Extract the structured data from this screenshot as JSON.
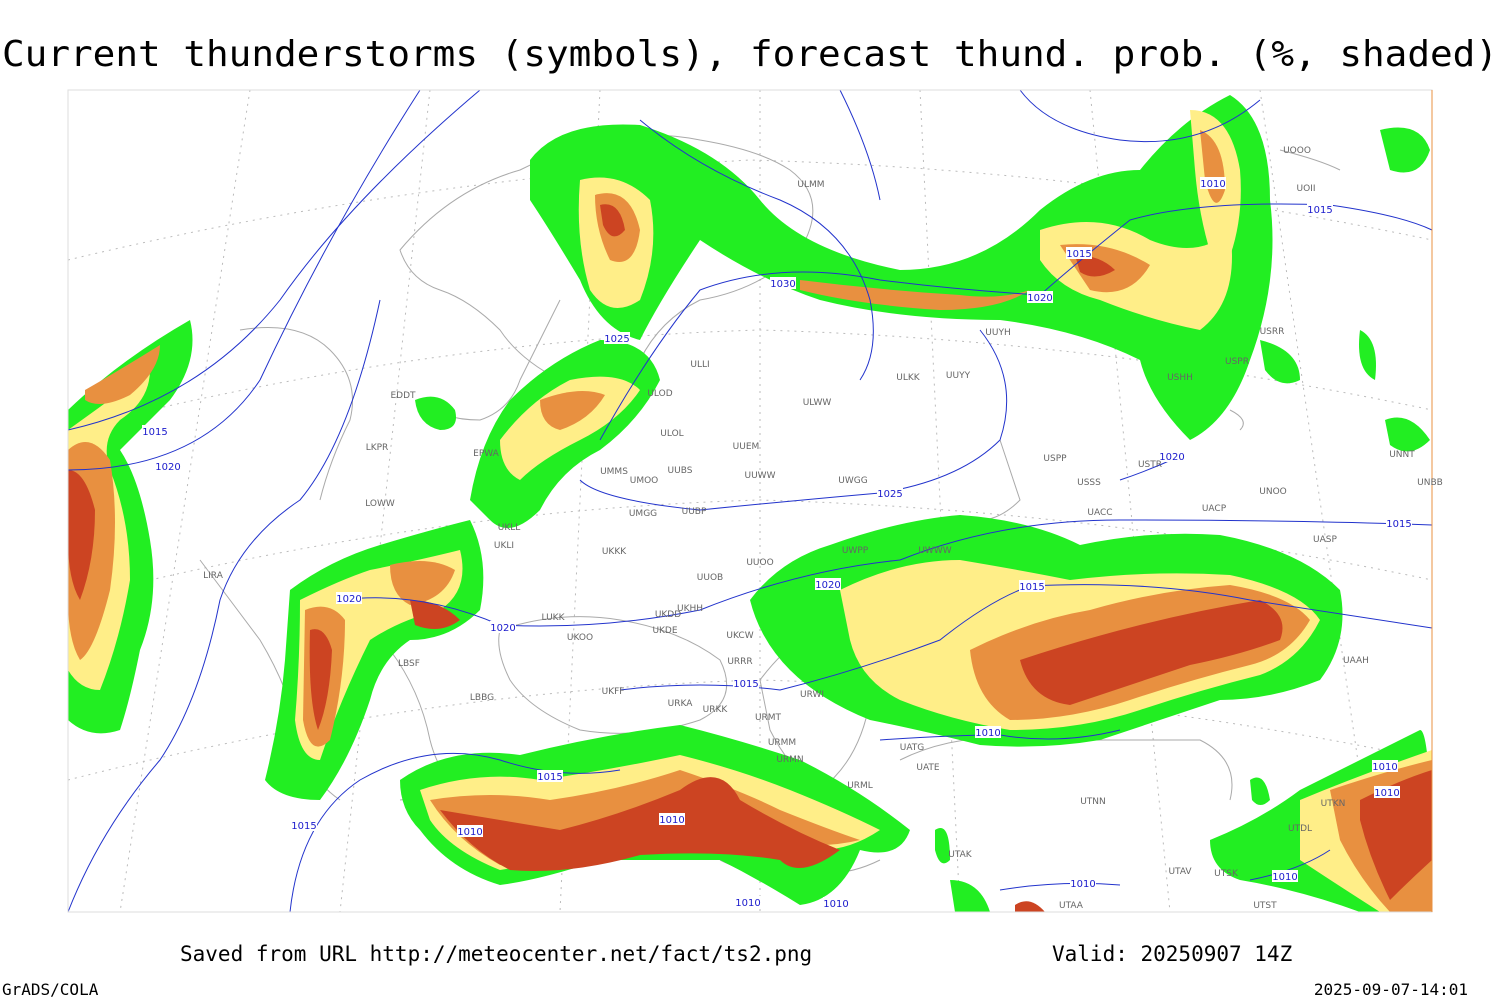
{
  "header": {
    "title": "Current thunderstorms (symbols), forecast thund. prob. (%, shaded)"
  },
  "footer": {
    "source": "Saved from URL http://meteocenter.net/fact/ts2.png",
    "valid": "Valid: 20250907 14Z",
    "credit": "GrADS/COLA",
    "timestamp": "2025-09-07-14:01"
  },
  "isobar_labels": [
    "1010",
    "1015",
    "1015",
    "1020",
    "1030",
    "1025",
    "1015",
    "1020",
    "1025",
    "1020",
    "1015",
    "1020",
    "1015",
    "1020",
    "1020",
    "1015",
    "1010",
    "1015",
    "1010",
    "1010",
    "1010",
    "1010",
    "1015",
    "1010",
    "1010",
    "1010",
    "1010"
  ],
  "stations": [
    "ULMM",
    "UOOO",
    "UOII",
    "UUYH",
    "ULLI",
    "ULKK",
    "UUYY",
    "ULOD",
    "ULOL",
    "ULWW",
    "UUEM",
    "UMMS",
    "UMOO",
    "UUBS",
    "UUWW",
    "UWGG",
    "EDDT",
    "EPWA",
    "LKPR",
    "LOWW",
    "LIRA",
    "UKLL",
    "UKLI",
    "UKKK",
    "UMGG",
    "UUBP",
    "UUOO",
    "UUOB",
    "UKHH",
    "LUKK",
    "UKOO",
    "UKDD",
    "UKDE",
    "UKCW",
    "URRR",
    "UKFF",
    "URKA",
    "URKK",
    "URWI",
    "URMT",
    "URMM",
    "URMN",
    "URML",
    "UATG",
    "UATE",
    "UTNN",
    "UTAK",
    "UTAA",
    "UTAV",
    "UTSK",
    "UTST",
    "UTDL",
    "UTKN",
    "UACC",
    "USSS",
    "USPP",
    "USTR",
    "UNOO",
    "UNNT",
    "UNBB",
    "UACP",
    "UASP",
    "UAAH",
    "UWPP",
    "UWWW",
    "LBSF",
    "LBBG",
    "USRR",
    "USPR",
    "USHH"
  ]
}
